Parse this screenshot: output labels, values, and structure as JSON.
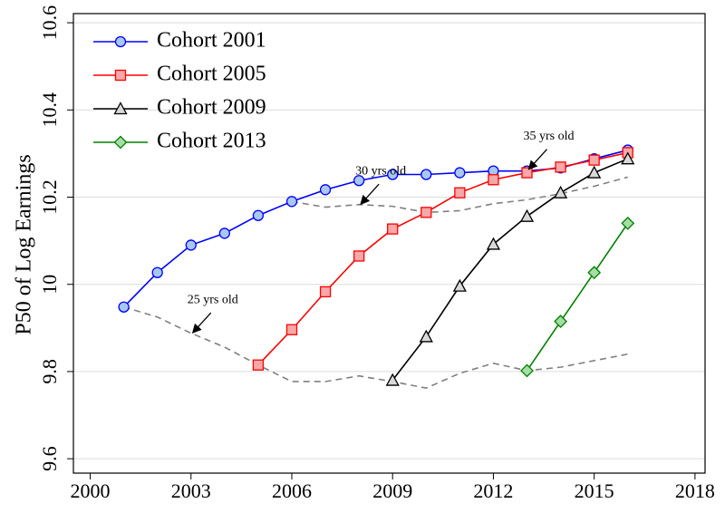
{
  "chart_data": {
    "type": "line",
    "ylabel": "P50 of Log Earnings",
    "x": [
      2001,
      2002,
      2003,
      2004,
      2005,
      2006,
      2007,
      2008,
      2009,
      2010,
      2011,
      2012,
      2013,
      2014,
      2015,
      2016
    ],
    "series": [
      {
        "name": "Cohort 2001",
        "color": "#0000ff",
        "marker": "circle",
        "marker_fill": "#a9c8f0",
        "values": [
          9.948,
          10.027,
          10.09,
          10.117,
          10.158,
          10.19,
          10.217,
          10.238,
          10.252,
          10.252,
          10.256,
          10.26,
          10.26,
          10.267,
          10.288,
          10.308
        ]
      },
      {
        "name": "Cohort 2005",
        "color": "#ff0000",
        "marker": "square",
        "marker_fill": "#f7a8a8",
        "values": [
          null,
          null,
          null,
          null,
          9.815,
          9.896,
          9.983,
          10.065,
          10.127,
          10.165,
          10.21,
          10.24,
          10.256,
          10.269,
          10.285,
          10.302
        ]
      },
      {
        "name": "Cohort 2009",
        "color": "#000000",
        "marker": "triangle",
        "marker_fill": "#d9d9d9",
        "values": [
          null,
          null,
          null,
          null,
          null,
          null,
          null,
          null,
          9.78,
          9.88,
          9.996,
          10.092,
          10.156,
          10.21,
          10.256,
          10.288
        ]
      },
      {
        "name": "Cohort 2013",
        "color": "#008000",
        "marker": "diamond",
        "marker_fill": "#a6dca6",
        "values": [
          null,
          null,
          null,
          null,
          null,
          null,
          null,
          null,
          null,
          null,
          null,
          null,
          9.802,
          9.915,
          10.027,
          10.14
        ]
      }
    ],
    "profiles": [
      {
        "color": "#808080",
        "values": [
          9.948,
          9.925,
          9.888,
          9.856,
          9.815,
          9.777,
          9.777,
          9.79,
          9.777,
          9.762,
          9.796,
          9.819,
          9.802,
          9.81,
          9.825,
          9.84
        ]
      },
      {
        "color": "#808080",
        "values": [
          null,
          null,
          null,
          null,
          null,
          10.19,
          10.177,
          10.183,
          10.179,
          10.165,
          10.169,
          10.185,
          10.194,
          10.208,
          10.225,
          10.246
        ]
      }
    ],
    "annotations": [
      {
        "text": "25 yrs old",
        "x": 2003,
        "y": 9.885
      },
      {
        "text": "30 yrs old",
        "x": 2008,
        "y": 10.18
      },
      {
        "text": "35 yrs old",
        "x": 2013,
        "y": 10.26
      }
    ],
    "xlim": [
      1999.5,
      2018.3
    ],
    "xticks": [
      2000,
      2003,
      2006,
      2009,
      2012,
      2015,
      2018
    ],
    "ylim": [
      9.567,
      10.621
    ],
    "yticks": [
      9.6,
      9.8,
      10,
      10.2,
      10.4,
      10.6
    ],
    "grid": true,
    "legend": "upper left"
  }
}
